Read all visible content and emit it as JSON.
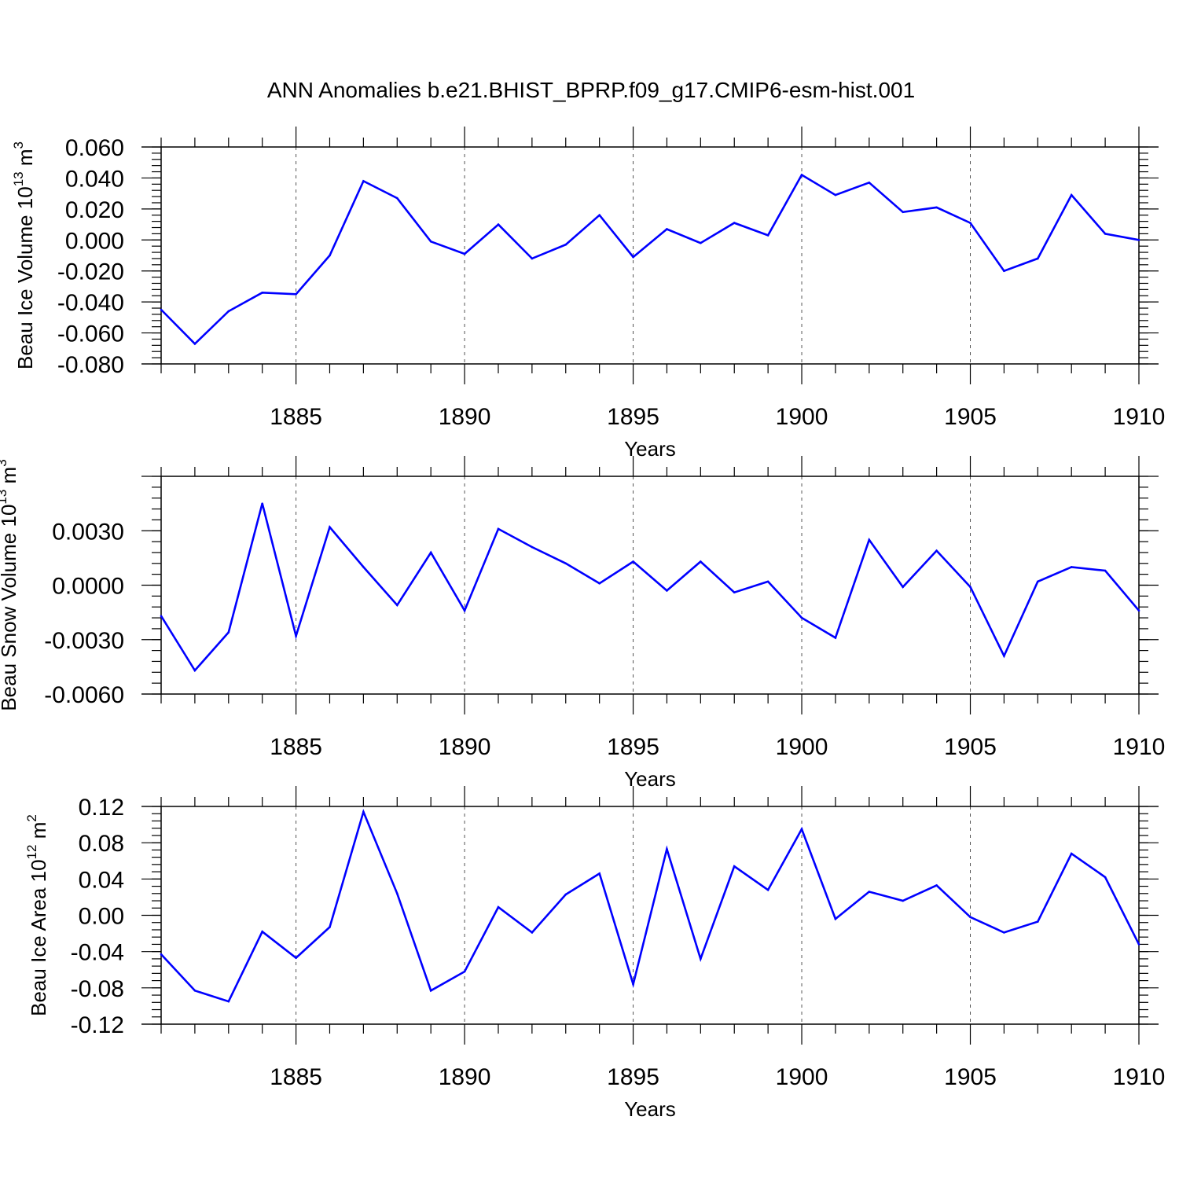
{
  "title": "ANN Anomalies b.e21.BHIST_BPRP.f09_g17.CMIP6-esm-hist.001",
  "colors": {
    "line": "#0000ff",
    "axis": "#000000",
    "grid": "#555555"
  },
  "chart_data": [
    {
      "type": "line",
      "ylabel_main": "Beau Ice Volume 10",
      "ylabel_exp": "13",
      "ylabel_unit": " m",
      "ylabel_unit_exp": "3",
      "xlabel": "Years",
      "xlim": [
        1881,
        1910
      ],
      "ylim": [
        -0.08,
        0.06
      ],
      "yticks": [
        -0.08,
        -0.06,
        -0.04,
        -0.02,
        0.0,
        0.02,
        0.04,
        0.06
      ],
      "ytick_labels": [
        "-0.080",
        "-0.060",
        "-0.040",
        "-0.020",
        "0.000",
        "0.020",
        "0.040",
        "0.060"
      ],
      "xticks": [
        1885,
        1890,
        1895,
        1900,
        1905,
        1910
      ],
      "xtick_labels": [
        "1885",
        "1890",
        "1895",
        "1900",
        "1905",
        "1910"
      ],
      "grid": "vertical dashed at labeled years",
      "x": [
        1881,
        1882,
        1883,
        1884,
        1885,
        1886,
        1887,
        1888,
        1889,
        1890,
        1891,
        1892,
        1893,
        1894,
        1895,
        1896,
        1897,
        1898,
        1899,
        1900,
        1901,
        1902,
        1903,
        1904,
        1905,
        1906,
        1907,
        1908,
        1909,
        1910
      ],
      "values": [
        -0.045,
        -0.067,
        -0.046,
        -0.034,
        -0.035,
        -0.01,
        0.038,
        0.027,
        -0.001,
        -0.009,
        0.01,
        -0.012,
        -0.003,
        0.016,
        -0.011,
        0.007,
        -0.002,
        0.011,
        0.003,
        0.042,
        0.029,
        0.037,
        0.018,
        0.021,
        0.011,
        -0.02,
        -0.012,
        0.029,
        0.004,
        0.0
      ]
    },
    {
      "type": "line",
      "ylabel_main": "Beau Snow Volume 10",
      "ylabel_exp": "13",
      "ylabel_unit": " m",
      "ylabel_unit_exp": "3",
      "xlabel": "Years",
      "xlim": [
        1881,
        1910
      ],
      "ylim": [
        -0.006,
        0.006
      ],
      "yticks": [
        -0.006,
        -0.003,
        0.0,
        0.003
      ],
      "ytick_labels": [
        "-0.0060",
        "-0.0030",
        "0.0000",
        "0.0030"
      ],
      "xticks": [
        1885,
        1890,
        1895,
        1900,
        1905,
        1910
      ],
      "xtick_labels": [
        "1885",
        "1890",
        "1895",
        "1900",
        "1905",
        "1910"
      ],
      "grid": "vertical dashed at labeled years",
      "x": [
        1881,
        1882,
        1883,
        1884,
        1885,
        1886,
        1887,
        1888,
        1889,
        1890,
        1891,
        1892,
        1893,
        1894,
        1895,
        1896,
        1897,
        1898,
        1899,
        1900,
        1901,
        1902,
        1903,
        1904,
        1905,
        1906,
        1907,
        1908,
        1909,
        1910
      ],
      "values": [
        -0.0017,
        -0.0047,
        -0.0026,
        0.0045,
        -0.0028,
        0.0032,
        0.001,
        -0.0011,
        0.0018,
        -0.0014,
        0.0031,
        0.0021,
        0.0012,
        0.0001,
        0.0013,
        -0.0003,
        0.0013,
        -0.0004,
        0.0002,
        -0.0018,
        -0.0029,
        0.0025,
        -0.0001,
        0.0019,
        -0.0001,
        -0.0039,
        0.0002,
        0.001,
        0.0008,
        -0.0014
      ]
    },
    {
      "type": "line",
      "ylabel_main": "Beau Ice Area 10",
      "ylabel_exp": "12",
      "ylabel_unit": " m",
      "ylabel_unit_exp": "2",
      "xlabel": "Years",
      "xlim": [
        1881,
        1910
      ],
      "ylim": [
        -0.12,
        0.12
      ],
      "yticks": [
        -0.12,
        -0.08,
        -0.04,
        0.0,
        0.04,
        0.08,
        0.12
      ],
      "ytick_labels": [
        "-0.12",
        "-0.08",
        "-0.04",
        "0.00",
        "0.04",
        "0.08",
        "0.12"
      ],
      "xticks": [
        1885,
        1890,
        1895,
        1900,
        1905,
        1910
      ],
      "xtick_labels": [
        "1885",
        "1890",
        "1895",
        "1900",
        "1905",
        "1910"
      ],
      "grid": "vertical dashed at labeled years",
      "x": [
        1881,
        1882,
        1883,
        1884,
        1885,
        1886,
        1887,
        1888,
        1889,
        1890,
        1891,
        1892,
        1893,
        1894,
        1895,
        1896,
        1897,
        1898,
        1899,
        1900,
        1901,
        1902,
        1903,
        1904,
        1905,
        1906,
        1907,
        1908,
        1909,
        1910
      ],
      "values": [
        -0.043,
        -0.083,
        -0.095,
        -0.018,
        -0.047,
        -0.013,
        0.114,
        0.024,
        -0.083,
        -0.062,
        0.009,
        -0.019,
        0.023,
        0.046,
        -0.076,
        0.073,
        -0.048,
        0.054,
        0.028,
        0.095,
        -0.004,
        0.026,
        0.016,
        0.033,
        -0.002,
        -0.019,
        -0.007,
        0.068,
        0.042,
        -0.032
      ]
    }
  ]
}
